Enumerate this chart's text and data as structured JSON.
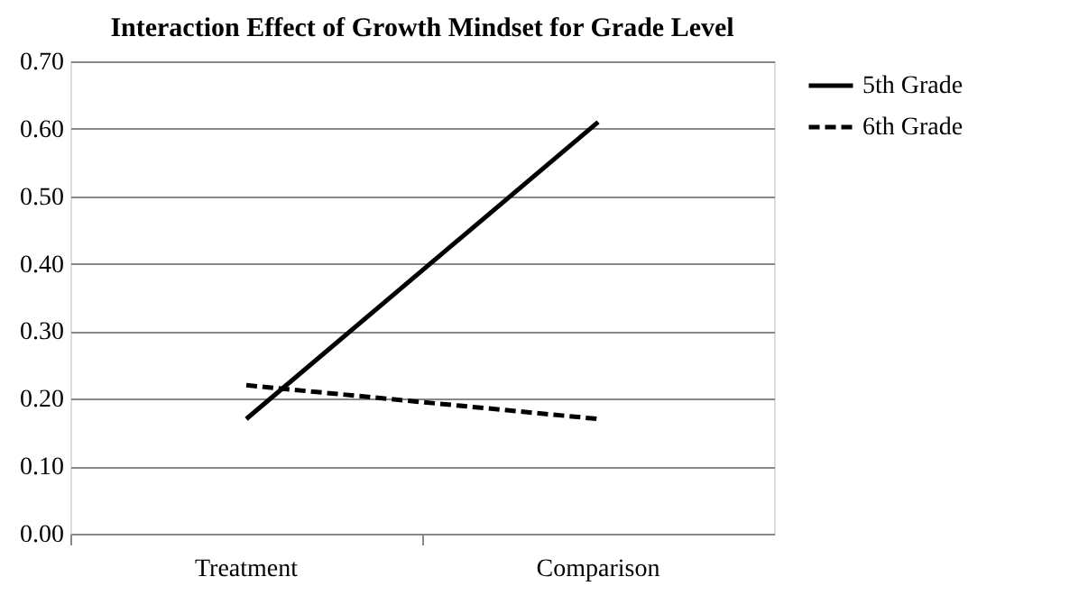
{
  "chart_data": {
    "type": "line",
    "title": "Interaction Effect of Growth Mindset for Grade Level",
    "categories": [
      "Treatment",
      "Comparison"
    ],
    "series": [
      {
        "name": "5th Grade",
        "color": "#000000",
        "values": [
          0.17,
          0.61
        ],
        "line_style": "solid"
      },
      {
        "name": "6th Grade",
        "color": "#000000",
        "values": [
          0.22,
          0.17
        ],
        "line_style": "dashed"
      }
    ],
    "ylim": [
      0,
      0.7
    ],
    "yticks": [
      {
        "value": 0,
        "label": "0.00"
      },
      {
        "value": 0.1,
        "label": "0.10"
      },
      {
        "value": 0.2,
        "label": "0.20"
      },
      {
        "value": 0.3,
        "label": "0.30"
      },
      {
        "value": 0.4,
        "label": "0.40"
      },
      {
        "value": 0.5,
        "label": "0.50"
      },
      {
        "value": 0.6,
        "label": "0.60"
      },
      {
        "value": 0.7,
        "label": "0.70"
      }
    ],
    "grid": "y",
    "legend": "right",
    "marker": "none"
  }
}
